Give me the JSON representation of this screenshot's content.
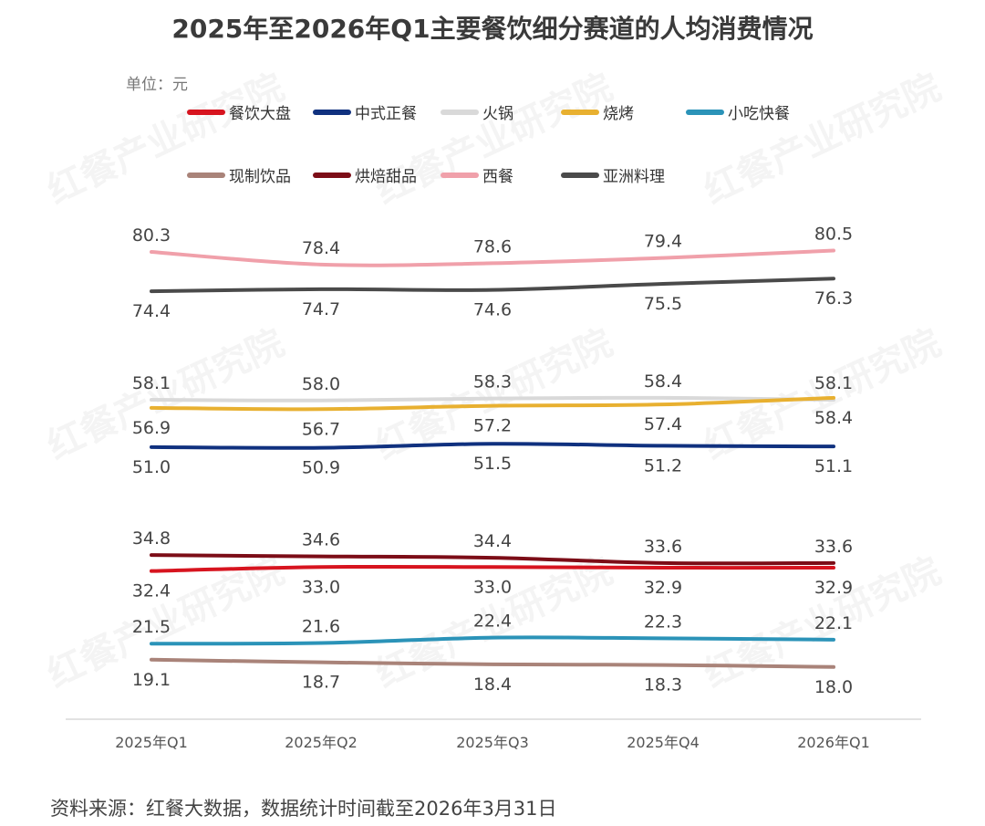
{
  "watermark": "红餐产业研究院",
  "chart_data": {
    "type": "line",
    "title": "2025年至2026年Q1主要餐饮细分赛道的人均消费情况",
    "unit_label": "单位：元",
    "categories": [
      "2025年Q1",
      "2025年Q2",
      "2025年Q3",
      "2025年Q4",
      "2026年Q1"
    ],
    "legend_placement": "top",
    "grid": false,
    "series": [
      {
        "name": "餐饮大盘",
        "color": "#d7141f",
        "values": [
          32.4,
          33.0,
          33.0,
          32.9,
          32.9
        ],
        "label_pos": "below"
      },
      {
        "name": "中式正餐",
        "color": "#10317f",
        "values": [
          51.0,
          50.9,
          51.5,
          51.2,
          51.1
        ],
        "label_pos": "below"
      },
      {
        "name": "火锅",
        "color": "#d9d9d9",
        "values": [
          58.1,
          58.0,
          58.3,
          58.4,
          58.1
        ],
        "label_pos": "above"
      },
      {
        "name": "烧烤",
        "color": "#e8b030",
        "values": [
          56.9,
          56.7,
          57.2,
          57.4,
          58.4
        ],
        "label_pos": "below"
      },
      {
        "name": "小吃快餐",
        "color": "#2b93b8",
        "values": [
          21.5,
          21.6,
          22.4,
          22.3,
          22.1
        ],
        "label_pos": "above"
      },
      {
        "name": "现制饮品",
        "color": "#a98379",
        "values": [
          19.1,
          18.7,
          18.4,
          18.3,
          18.0
        ],
        "label_pos": "below"
      },
      {
        "name": "烘焙甜品",
        "color": "#7c0d17",
        "values": [
          34.8,
          34.6,
          34.4,
          33.6,
          33.6
        ],
        "label_pos": "above"
      },
      {
        "name": "西餐",
        "color": "#f0a0aa",
        "values": [
          80.3,
          78.4,
          78.6,
          79.4,
          80.5
        ],
        "label_pos": "above"
      },
      {
        "name": "亚洲料理",
        "color": "#4a4a4a",
        "values": [
          74.4,
          74.7,
          74.6,
          75.5,
          76.3
        ],
        "label_pos": "below"
      }
    ],
    "source": "资料来源：红餐大数据，数据统计时间截至2026年3月31日"
  }
}
